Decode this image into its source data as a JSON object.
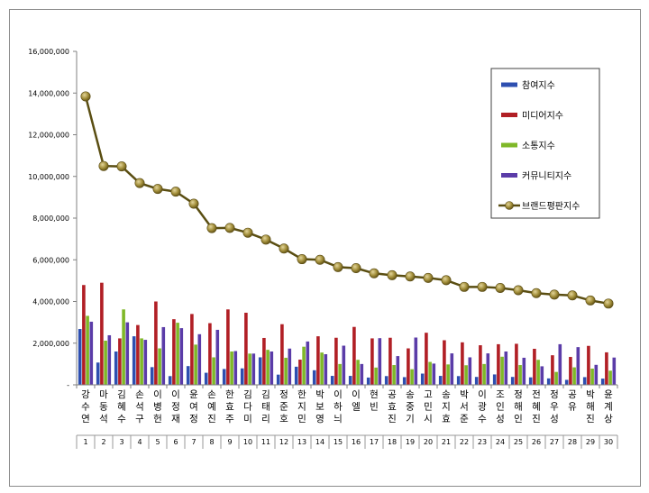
{
  "chart_data": {
    "type": "bar",
    "title": "",
    "xlabel": "",
    "ylabel": "",
    "ylim": [
      0,
      16000000
    ],
    "yticks": [
      "-",
      "2,000,000",
      "4,000,000",
      "6,000,000",
      "8,000,000",
      "10,000,000",
      "12,000,000",
      "14,000,000",
      "16,000,000"
    ],
    "ytick_values": [
      0,
      2000000,
      4000000,
      6000000,
      8000000,
      10000000,
      12000000,
      14000000,
      16000000
    ],
    "grid": false,
    "legend_position": "top-right",
    "categories": [
      "강수연",
      "마동석",
      "김혜수",
      "손석구",
      "이병헌",
      "이정재",
      "윤여정",
      "손예진",
      "한효주",
      "김다미",
      "김태리",
      "정준호",
      "한지민",
      "박보영",
      "이하늬",
      "이엘",
      "현빈",
      "공효진",
      "송중기",
      "고민시",
      "송지효",
      "박서준",
      "이광수",
      "조인성",
      "정해인",
      "전혜진",
      "정우성",
      "공유",
      "박해진",
      "윤계상"
    ],
    "ranks": [
      "1",
      "2",
      "3",
      "4",
      "5",
      "6",
      "7",
      "8",
      "9",
      "10",
      "11",
      "12",
      "13",
      "14",
      "15",
      "16",
      "17",
      "18",
      "19",
      "20",
      "21",
      "22",
      "23",
      "24",
      "25",
      "26",
      "27",
      "28",
      "29",
      "30"
    ],
    "series": [
      {
        "name": "참여지수",
        "kind": "bar",
        "color": "#2e4fb0",
        "values": [
          2680000,
          1070000,
          1600000,
          2330000,
          850000,
          420000,
          900000,
          580000,
          760000,
          790000,
          1320000,
          490000,
          870000,
          700000,
          430000,
          430000,
          350000,
          420000,
          370000,
          540000,
          430000,
          420000,
          380000,
          500000,
          380000,
          360000,
          310000,
          240000,
          370000,
          300000
        ]
      },
      {
        "name": "미디어지수",
        "kind": "bar",
        "color": "#b11f25",
        "values": [
          4790000,
          4900000,
          2230000,
          2870000,
          4000000,
          3150000,
          3400000,
          2960000,
          3620000,
          3460000,
          2250000,
          2910000,
          1210000,
          2330000,
          2260000,
          2780000,
          2230000,
          2260000,
          1750000,
          2500000,
          2140000,
          2040000,
          1900000,
          1950000,
          1970000,
          1730000,
          1420000,
          1340000,
          1870000,
          1560000
        ]
      },
      {
        "name": "소통지수",
        "kind": "bar",
        "color": "#7fb828",
        "values": [
          3310000,
          2120000,
          3620000,
          2230000,
          1750000,
          2980000,
          1930000,
          1320000,
          1600000,
          1500000,
          1680000,
          1300000,
          1830000,
          1550000,
          1000000,
          1200000,
          830000,
          950000,
          750000,
          1100000,
          980000,
          940000,
          1000000,
          1350000,
          950000,
          1200000,
          620000,
          840000,
          780000,
          680000
        ]
      },
      {
        "name": "커뮤니티지수",
        "kind": "bar",
        "color": "#5b3ca8",
        "values": [
          3030000,
          2380000,
          3000000,
          2160000,
          2770000,
          2720000,
          2430000,
          2640000,
          1620000,
          1500000,
          1600000,
          1740000,
          2080000,
          1470000,
          1880000,
          1000000,
          2240000,
          1380000,
          2270000,
          1020000,
          1510000,
          1320000,
          1510000,
          1600000,
          1300000,
          890000,
          1950000,
          1810000,
          960000,
          1310000
        ]
      },
      {
        "name": "브랜드평판지수",
        "kind": "line",
        "color": "#5a4e12",
        "marker_color": "#8a7a28",
        "values": [
          13840000,
          10500000,
          10480000,
          9680000,
          9400000,
          9270000,
          8690000,
          7520000,
          7530000,
          7300000,
          6970000,
          6540000,
          6030000,
          6000000,
          5650000,
          5600000,
          5350000,
          5260000,
          5200000,
          5130000,
          5020000,
          4700000,
          4700000,
          4650000,
          4540000,
          4400000,
          4330000,
          4290000,
          4050000,
          3900000
        ]
      }
    ]
  }
}
